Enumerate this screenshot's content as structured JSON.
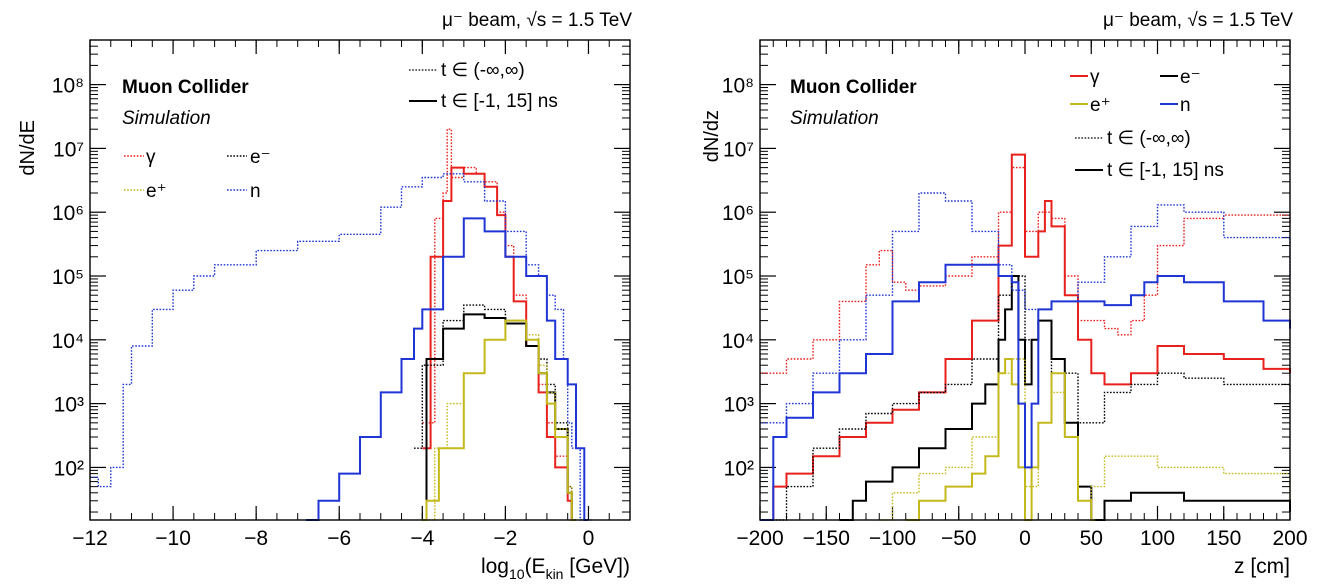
{
  "chart_data": [
    {
      "type": "line",
      "header": "μ⁻ beam, √s = 1.5 TeV",
      "xlabel": "log10(Ekin [GeV])",
      "ylabel": "dN/dE",
      "yscale": "log",
      "xlim": [
        -12,
        1
      ],
      "ylim": [
        15,
        500000000
      ],
      "x_ticks": [
        "−12",
        "−10",
        "−8",
        "−6",
        "−4",
        "−2",
        "0"
      ],
      "y_ticks": [
        "10²",
        "10³",
        "10⁴",
        "10⁵",
        "10⁶",
        "10⁷",
        "10⁸"
      ],
      "brand": "Muon Collider",
      "brand_sub": "Simulation",
      "legend_time": [
        "t ∈ (-∞,∞)",
        "t ∈ [-1, 15] ns"
      ],
      "legend_particles": [
        "γ",
        "e⁻",
        "e⁺",
        "n"
      ],
      "series": [
        {
          "name": "γ",
          "cut": "all",
          "color": "#e8211d",
          "x": [
            -4.0,
            -3.7,
            -3.5,
            -3.4,
            -3.3,
            -3.0,
            -2.7,
            -2.5,
            -2.2,
            -2.0,
            -1.8,
            -1.5,
            -1.2,
            -1.0,
            -0.8,
            -0.5,
            -0.4
          ],
          "y": [
            500,
            800000,
            2000000,
            20000000,
            3500000,
            5000000,
            4000000,
            3000000,
            1000000,
            300000,
            50000,
            10000,
            2000,
            500,
            150,
            40,
            15
          ]
        },
        {
          "name": "γ",
          "cut": "window",
          "color": "#e8211d",
          "x": [
            -4.0,
            -3.8,
            -3.5,
            -3.3,
            -3.0,
            -2.7,
            -2.5,
            -2.2,
            -2.0,
            -1.8,
            -1.5,
            -1.2,
            -1.0,
            -0.8,
            -0.5,
            -0.4
          ],
          "y": [
            200,
            200000,
            1500000,
            5000000,
            4000000,
            4000000,
            2500000,
            900000,
            200000,
            40000,
            8000,
            1500,
            300,
            100,
            30,
            15
          ]
        },
        {
          "name": "e⁻",
          "cut": "all",
          "color": "#000000",
          "x": [
            -4.2,
            -4.0,
            -3.5,
            -3.0,
            -2.5,
            -2.0,
            -1.5,
            -1.2,
            -1.0,
            -0.8,
            -0.5,
            -0.4
          ],
          "y": [
            200,
            4000,
            20000,
            35000,
            30000,
            20000,
            10000,
            5000,
            2000,
            500,
            50,
            15
          ]
        },
        {
          "name": "e⁻",
          "cut": "window",
          "color": "#000000",
          "x": [
            -4.0,
            -3.9,
            -3.5,
            -3.0,
            -2.5,
            -2.0,
            -1.5,
            -1.2,
            -1.0,
            -0.8,
            -0.5,
            -0.4
          ],
          "y": [
            15,
            5000,
            15000,
            25000,
            22000,
            18000,
            8000,
            3000,
            1500,
            400,
            40,
            15
          ]
        },
        {
          "name": "e⁺",
          "cut": "all",
          "color": "#c4b91a",
          "x": [
            -4.0,
            -3.7,
            -3.4,
            -3.0,
            -2.5,
            -2.0,
            -1.5,
            -1.2,
            -1.0,
            -0.8,
            -0.5,
            -0.4
          ],
          "y": [
            15,
            200,
            1000,
            3000,
            10000,
            20000,
            12000,
            4000,
            1500,
            400,
            50,
            15
          ]
        },
        {
          "name": "e⁺",
          "cut": "window",
          "color": "#c4b91a",
          "x": [
            -4.0,
            -3.9,
            -3.6,
            -3.0,
            -2.5,
            -2.0,
            -1.5,
            -1.2,
            -1.0,
            -0.8,
            -0.5,
            -0.4
          ],
          "y": [
            15,
            30,
            200,
            3000,
            10000,
            20000,
            10000,
            3000,
            1000,
            300,
            40,
            15
          ]
        },
        {
          "name": "n",
          "cut": "all",
          "color": "#1f35d6",
          "x": [
            -12.0,
            -11.8,
            -11.5,
            -11.2,
            -11.0,
            -10.5,
            -10.0,
            -9.5,
            -9.0,
            -8.0,
            -7.0,
            -6.0,
            -5.0,
            -4.5,
            -4.0,
            -3.5,
            -3.0,
            -2.5,
            -2.0,
            -1.5,
            -1.2,
            -1.0,
            -0.8,
            -0.6,
            -0.5,
            -0.4,
            -0.2,
            0.0
          ],
          "y": [
            70,
            50,
            100,
            2000,
            8000,
            30000,
            60000,
            100000,
            150000,
            250000,
            350000,
            450000,
            1200000,
            2500000,
            3500000,
            4000000,
            3000000,
            1500000,
            500000,
            150000,
            100000,
            50000,
            30000,
            5000,
            500,
            200,
            15,
            15
          ]
        },
        {
          "name": "n",
          "cut": "window",
          "color": "#1f35d6",
          "x": [
            -6.8,
            -6.6,
            -6.5,
            -6.0,
            -5.5,
            -5.0,
            -4.5,
            -4.2,
            -4.0,
            -3.5,
            -3.0,
            -2.5,
            -2.0,
            -1.5,
            -1.0,
            -0.8,
            -0.5,
            -0.3,
            -0.1
          ],
          "y": [
            15,
            15,
            30,
            80,
            300,
            1500,
            5000,
            15000,
            30000,
            200000,
            800000,
            500000,
            200000,
            100000,
            20000,
            5000,
            2000,
            200,
            15
          ]
        }
      ]
    },
    {
      "type": "line",
      "header": "μ⁻ beam, √s = 1.5 TeV",
      "xlabel": "z [cm]",
      "ylabel": "dN/dz",
      "yscale": "log",
      "xlim": [
        -200,
        200
      ],
      "ylim": [
        15,
        500000000
      ],
      "x_ticks": [
        "−200",
        "−150",
        "−100",
        "−50",
        "0",
        "50",
        "100",
        "150",
        "200"
      ],
      "y_ticks": [
        "10²",
        "10³",
        "10⁴",
        "10⁵",
        "10⁶",
        "10⁷",
        "10⁸"
      ],
      "brand": "Muon Collider",
      "brand_sub": "Simulation",
      "legend_particles": [
        "γ",
        "e⁻",
        "e⁺",
        "n"
      ],
      "legend_time": [
        "t ∈ (-∞,∞)",
        "t ∈ [-1, 15] ns"
      ],
      "series": [
        {
          "name": "γ",
          "cut": "all",
          "color": "#e8211d",
          "x": [
            -200,
            -180,
            -160,
            -140,
            -120,
            -110,
            -100,
            -90,
            -80,
            -60,
            -40,
            -20,
            -10,
            0,
            10,
            20,
            30,
            40,
            50,
            60,
            70,
            80,
            90,
            100,
            120,
            150,
            200
          ],
          "y": [
            3000,
            5000,
            10000,
            40000,
            150000,
            250000,
            80000,
            60000,
            70000,
            100000,
            200000,
            1000000,
            5000000,
            500000,
            1000000,
            800000,
            100000,
            20000,
            20000,
            15000,
            12000,
            20000,
            50000,
            300000,
            800000,
            900000,
            700000
          ]
        },
        {
          "name": "γ",
          "cut": "window",
          "color": "#e8211d",
          "x": [
            -200,
            -195,
            -190,
            -180,
            -160,
            -140,
            -120,
            -100,
            -80,
            -60,
            -40,
            -20,
            -10,
            0,
            10,
            15,
            20,
            30,
            40,
            50,
            60,
            80,
            100,
            120,
            150,
            180,
            200
          ],
          "y": [
            15,
            15,
            50,
            80,
            150,
            300,
            500,
            800,
            1500,
            5000,
            20000,
            300000,
            8000000,
            200000,
            500000,
            1500000,
            600000,
            50000,
            10000,
            3000,
            2000,
            3000,
            8000,
            6000,
            5000,
            3500,
            3000
          ]
        },
        {
          "name": "e⁻",
          "cut": "all",
          "color": "#000000",
          "x": [
            -200,
            -180,
            -160,
            -140,
            -120,
            -100,
            -80,
            -60,
            -40,
            -20,
            -10,
            0,
            10,
            20,
            40,
            60,
            80,
            100,
            120,
            150,
            200
          ],
          "y": [
            15,
            50,
            200,
            400,
            700,
            1000,
            1500,
            2000,
            5000,
            50000,
            100000,
            10000,
            20000,
            3000,
            500,
            1500,
            2000,
            3000,
            2500,
            2000,
            1500
          ]
        },
        {
          "name": "e⁻",
          "cut": "window",
          "color": "#000000",
          "x": [
            -140,
            -130,
            -120,
            -100,
            -80,
            -60,
            -40,
            -30,
            -20,
            -15,
            -10,
            -5,
            0,
            5,
            10,
            20,
            30,
            40,
            50,
            60,
            80,
            100,
            120,
            150,
            200
          ],
          "y": [
            15,
            30,
            60,
            100,
            200,
            400,
            1000,
            2000,
            10000,
            30000,
            100000,
            10000,
            2000,
            10000,
            20000,
            5000,
            500,
            50,
            15,
            30,
            40,
            40,
            30,
            30,
            20
          ]
        },
        {
          "name": "e⁺",
          "cut": "all",
          "color": "#c4b91a",
          "x": [
            -110,
            -100,
            -80,
            -60,
            -40,
            -20,
            -10,
            0,
            10,
            20,
            30,
            40,
            50,
            60,
            80,
            100,
            120,
            150,
            200
          ],
          "y": [
            15,
            40,
            80,
            100,
            300,
            3000,
            5000,
            50,
            500,
            1500,
            300,
            30,
            50,
            150,
            150,
            100,
            100,
            80,
            30
          ]
        },
        {
          "name": "e⁺",
          "cut": "window",
          "color": "#c4b91a",
          "x": [
            -90,
            -80,
            -60,
            -40,
            -30,
            -20,
            -15,
            -10,
            -5,
            0,
            5,
            10,
            20,
            30,
            40,
            50
          ],
          "y": [
            15,
            30,
            50,
            80,
            150,
            3000,
            5000,
            2000,
            100,
            15,
            100,
            500,
            3000,
            300,
            30,
            15
          ]
        },
        {
          "name": "n",
          "cut": "all",
          "color": "#1f35d6",
          "x": [
            -200,
            -180,
            -160,
            -140,
            -120,
            -100,
            -80,
            -60,
            -40,
            -20,
            -10,
            0,
            20,
            40,
            60,
            80,
            100,
            120,
            150,
            200
          ],
          "y": [
            500,
            1000,
            3000,
            10000,
            50000,
            500000,
            2000000,
            1500000,
            500000,
            150000,
            60000,
            30000,
            40000,
            80000,
            200000,
            600000,
            1300000,
            1000000,
            400000,
            100000
          ]
        },
        {
          "name": "n",
          "cut": "window",
          "color": "#1f35d6",
          "x": [
            -200,
            -190,
            -180,
            -160,
            -140,
            -120,
            -100,
            -80,
            -60,
            -40,
            -20,
            -10,
            -5,
            0,
            5,
            10,
            20,
            40,
            60,
            80,
            90,
            100,
            120,
            150,
            180,
            200
          ],
          "y": [
            15,
            300,
            600,
            1500,
            3000,
            6000,
            40000,
            80000,
            150000,
            150000,
            100000,
            80000,
            1000,
            100,
            1000,
            30000,
            40000,
            40000,
            35000,
            50000,
            80000,
            100000,
            80000,
            40000,
            20000,
            15000
          ]
        }
      ]
    }
  ]
}
